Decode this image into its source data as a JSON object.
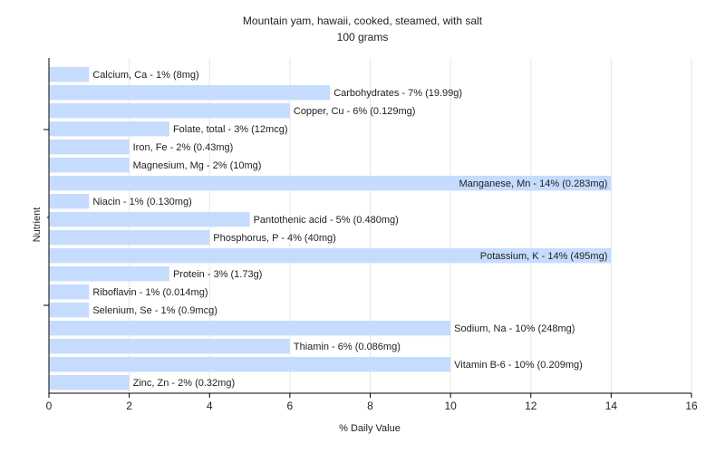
{
  "chart_data": {
    "type": "bar",
    "orientation": "horizontal",
    "title": "Mountain yam, hawaii, cooked, steamed, with salt",
    "subtitle": "100 grams",
    "xlabel": "% Daily Value",
    "ylabel": "Nutrient",
    "xlim": [
      0,
      16
    ],
    "xticks": [
      0,
      2,
      4,
      6,
      8,
      10,
      12,
      14,
      16
    ],
    "grid": true,
    "bar_color": "#c6dcff",
    "categories": [
      "Calcium, Ca",
      "Carbohydrates",
      "Copper, Cu",
      "Folate, total",
      "Iron, Fe",
      "Magnesium, Mg",
      "Manganese, Mn",
      "Niacin",
      "Pantothenic acid",
      "Phosphorus, P",
      "Potassium, K",
      "Protein",
      "Riboflavin",
      "Selenium, Se",
      "Sodium, Na",
      "Thiamin",
      "Vitamin B-6",
      "Zinc, Zn"
    ],
    "values": [
      1,
      7,
      6,
      3,
      2,
      2,
      14,
      1,
      5,
      4,
      14,
      3,
      1,
      1,
      10,
      6,
      10,
      2
    ],
    "labels": [
      "Calcium, Ca - 1% (8mg)",
      "Carbohydrates - 7% (19.99g)",
      "Copper, Cu - 6% (0.129mg)",
      "Folate, total - 3% (12mcg)",
      "Iron, Fe - 2% (0.43mg)",
      "Magnesium, Mg - 2% (10mg)",
      "Manganese, Mn - 14% (0.283mg)",
      "Niacin - 1% (0.130mg)",
      "Pantothenic acid - 5% (0.480mg)",
      "Phosphorus, P - 4% (40mg)",
      "Potassium, K - 14% (495mg)",
      "Protein - 3% (1.73g)",
      "Riboflavin - 1% (0.014mg)",
      "Selenium, Se - 1% (0.9mcg)",
      "Sodium, Na - 10% (248mg)",
      "Thiamin - 6% (0.086mg)",
      "Vitamin B-6 - 10% (0.209mg)",
      "Zinc, Zn - 2% (0.32mg)"
    ]
  }
}
